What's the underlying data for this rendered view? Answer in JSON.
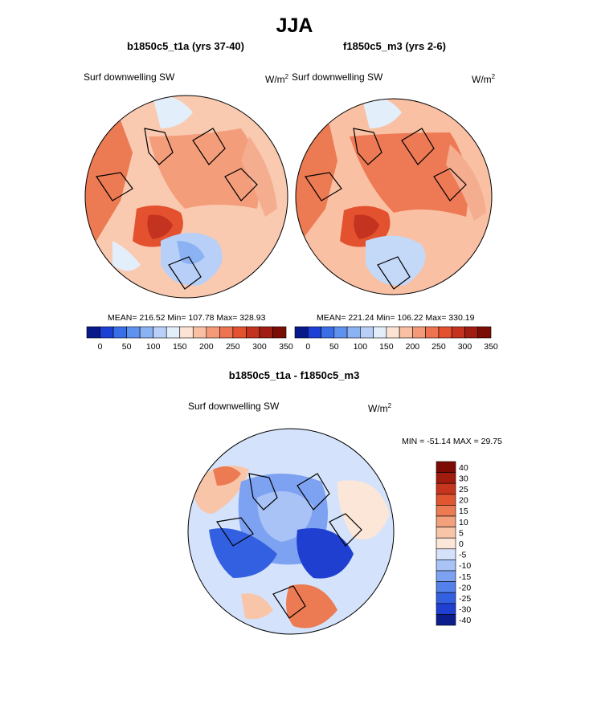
{
  "title": "JJA",
  "palette": {
    "full": [
      "#08198a",
      "#1c3fd6",
      "#3a6ee6",
      "#5f91ef",
      "#8bb2f3",
      "#b8d0f7",
      "#e3eefb",
      "#fde3d4",
      "#f9c0a3",
      "#f59a78",
      "#ee7350",
      "#e3512f",
      "#c43320",
      "#a11d12",
      "#7a0d06"
    ],
    "diff": [
      "#0b1e8c",
      "#1f3fd0",
      "#3360e0",
      "#5480ec",
      "#7ea2f2",
      "#a9c3f7",
      "#d4e3fb",
      "#fce6d8",
      "#f8c5a9",
      "#f3a17d",
      "#ec7a52",
      "#df5631",
      "#c6361e",
      "#a01c0e",
      "#7d0b05"
    ]
  },
  "panels": [
    {
      "heading": "b1850c5_t1a (yrs 37-40)",
      "variable": "Surf downwelling SW",
      "units_base": "W/m",
      "units_exp": "2",
      "stats": "MEAN= 216.52  Min= 107.78  Max= 328.93"
    },
    {
      "heading": "f1850c5_m3 (yrs 2-6)",
      "variable": "Surf downwelling SW",
      "units_base": "W/m",
      "units_exp": "2",
      "stats": "MEAN= 221.24  Min= 106.22  Max= 330.19"
    }
  ],
  "diff_panel": {
    "heading": "b1850c5_t1a - f1850c5_m3",
    "variable": "Surf downwelling SW",
    "units_base": "W/m",
    "units_exp": "2",
    "stats": "MIN = -51.14 MAX =  29.75"
  },
  "chart_data": [
    {
      "type": "heatmap",
      "projection": "north polar stereographic",
      "title": "b1850c5_t1a (yrs 37-40)",
      "variable": "Surf downwelling SW",
      "units": "W/m2",
      "mean": 216.52,
      "min": 107.78,
      "max": 328.93,
      "colorbar_ticks": [
        "0",
        "50",
        "100",
        "150",
        "200",
        "250",
        "300",
        "350"
      ],
      "colorbar_range": [
        0,
        350
      ]
    },
    {
      "type": "heatmap",
      "projection": "north polar stereographic",
      "title": "f1850c5_m3 (yrs 2-6)",
      "variable": "Surf downwelling SW",
      "units": "W/m2",
      "mean": 221.24,
      "min": 106.22,
      "max": 330.19,
      "colorbar_ticks": [
        "0",
        "50",
        "100",
        "150",
        "200",
        "250",
        "300",
        "350"
      ],
      "colorbar_range": [
        0,
        350
      ]
    },
    {
      "type": "heatmap",
      "projection": "north polar stereographic",
      "title": "b1850c5_t1a - f1850c5_m3",
      "variable": "Surf downwelling SW",
      "units": "W/m2",
      "min": -51.14,
      "max": 29.75,
      "colorbar_ticks": [
        "40",
        "30",
        "25",
        "20",
        "15",
        "10",
        "5",
        "0",
        "-5",
        "-10",
        "-15",
        "-20",
        "-25",
        "-30",
        "-40"
      ]
    }
  ]
}
